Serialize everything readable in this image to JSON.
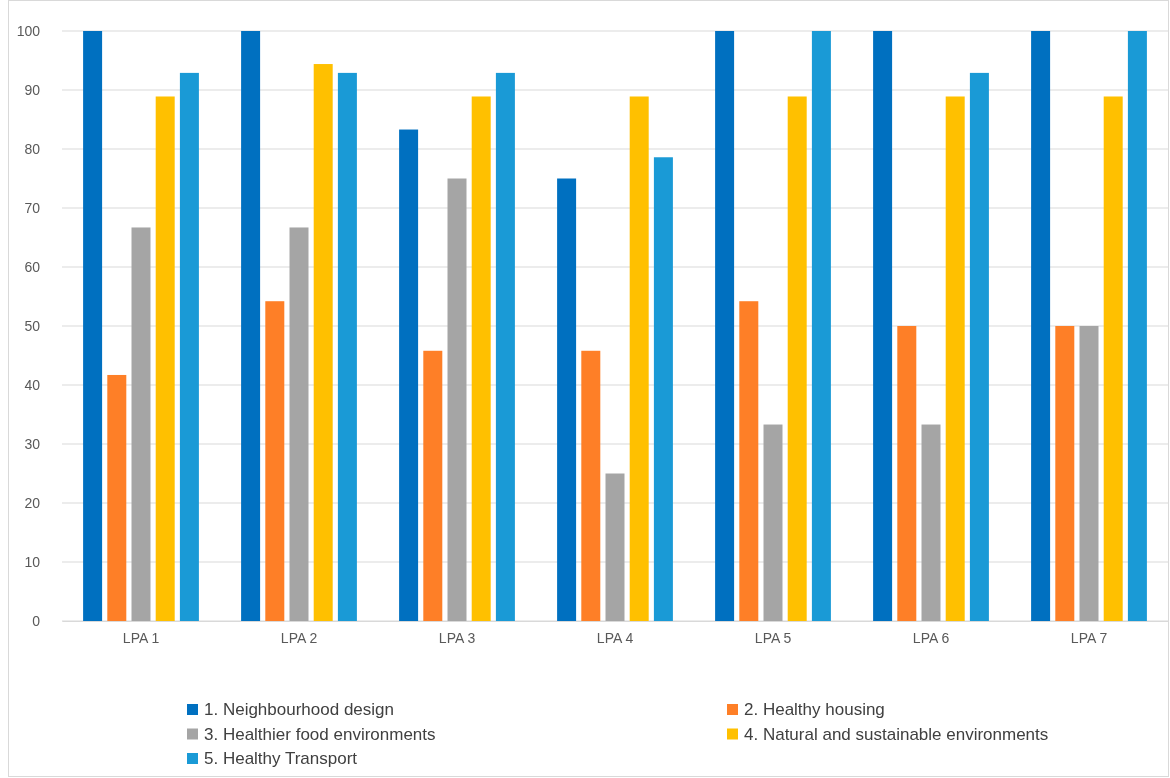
{
  "chart_data": {
    "type": "bar",
    "categories": [
      "LPA 1",
      "LPA 2",
      "LPA 3",
      "LPA 4",
      "LPA 5",
      "LPA 6",
      "LPA 7"
    ],
    "series": [
      {
        "name": "1. Neighbourhood design",
        "color": "#0070c0",
        "values": [
          100,
          100,
          83.3,
          75,
          100,
          100,
          100
        ]
      },
      {
        "name": "2. Healthy housing",
        "color": "#fe7f27",
        "values": [
          41.7,
          54.2,
          45.8,
          45.8,
          54.2,
          50,
          50
        ]
      },
      {
        "name": "3. Healthier food environments",
        "color": "#a5a5a5",
        "values": [
          66.7,
          66.7,
          75,
          25,
          33.3,
          33.3,
          50
        ]
      },
      {
        "name": "4. Natural and sustainable environments",
        "color": "#ffc000",
        "values": [
          88.9,
          94.4,
          88.9,
          88.9,
          88.9,
          88.9,
          88.9
        ]
      },
      {
        "name": "5. Healthy Transport",
        "color": "#1a9ad6",
        "values": [
          92.9,
          92.9,
          92.9,
          78.6,
          100,
          92.9,
          100
        ]
      }
    ],
    "ylim": [
      0,
      100
    ],
    "yticks": [
      0,
      10,
      20,
      30,
      40,
      50,
      60,
      70,
      80,
      90,
      100
    ],
    "grid": "y",
    "legend": "bottom"
  }
}
